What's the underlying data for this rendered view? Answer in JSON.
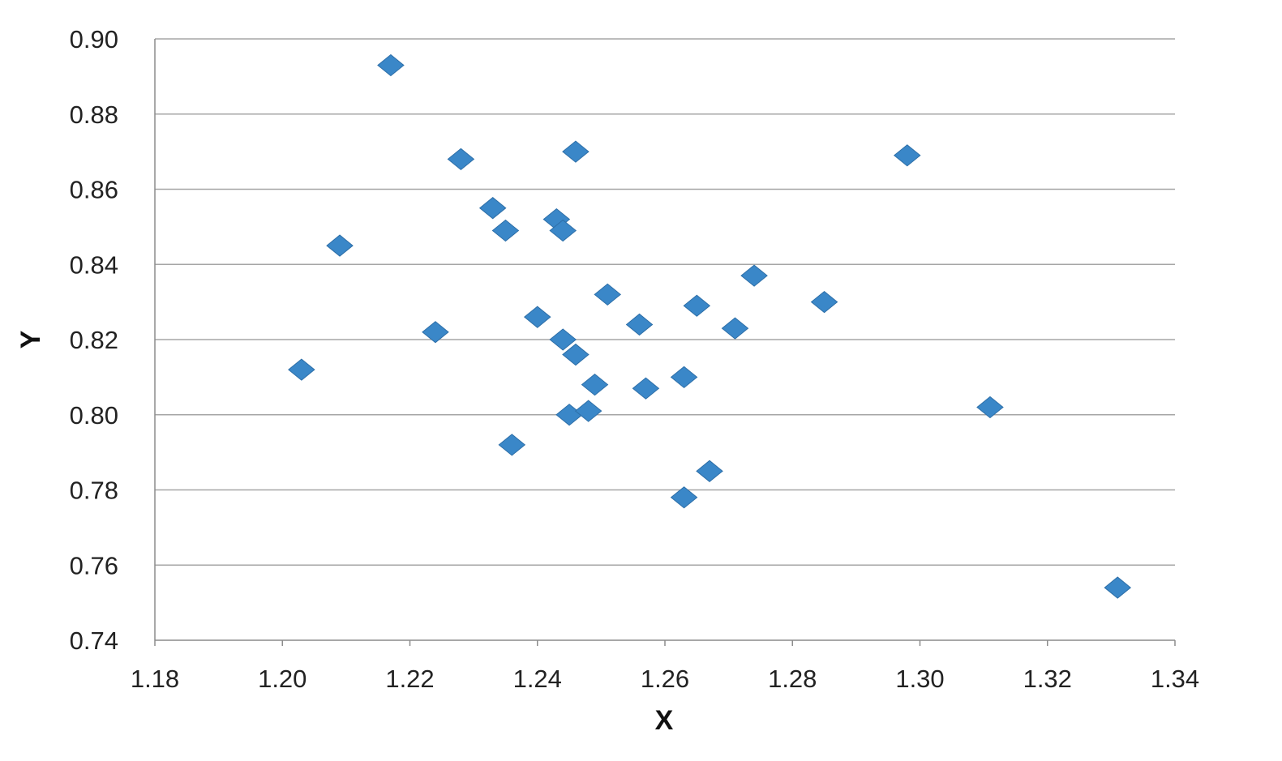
{
  "chart_data": {
    "type": "scatter",
    "xlabel": "X",
    "ylabel": "Y",
    "xlim": [
      1.18,
      1.34
    ],
    "ylim": [
      0.74,
      0.9
    ],
    "x_ticks": [
      "1.18",
      "1.20",
      "1.22",
      "1.24",
      "1.26",
      "1.28",
      "1.30",
      "1.32",
      "1.34"
    ],
    "y_ticks": [
      "0.74",
      "0.76",
      "0.78",
      "0.80",
      "0.82",
      "0.84",
      "0.86",
      "0.88",
      "0.90"
    ],
    "grid": "horizontal",
    "legend": "none",
    "marker": "diamond",
    "colors": {
      "marker": "#3a87c8",
      "grid": "#a6a6a6"
    },
    "points": [
      {
        "x": 1.217,
        "y": 0.893
      },
      {
        "x": 1.203,
        "y": 0.812
      },
      {
        "x": 1.209,
        "y": 0.845
      },
      {
        "x": 1.224,
        "y": 0.822
      },
      {
        "x": 1.228,
        "y": 0.868
      },
      {
        "x": 1.233,
        "y": 0.855
      },
      {
        "x": 1.235,
        "y": 0.849
      },
      {
        "x": 1.236,
        "y": 0.792
      },
      {
        "x": 1.24,
        "y": 0.826
      },
      {
        "x": 1.243,
        "y": 0.852
      },
      {
        "x": 1.244,
        "y": 0.849
      },
      {
        "x": 1.244,
        "y": 0.82
      },
      {
        "x": 1.245,
        "y": 0.8
      },
      {
        "x": 1.246,
        "y": 0.87
      },
      {
        "x": 1.246,
        "y": 0.816
      },
      {
        "x": 1.248,
        "y": 0.801
      },
      {
        "x": 1.249,
        "y": 0.808
      },
      {
        "x": 1.251,
        "y": 0.832
      },
      {
        "x": 1.256,
        "y": 0.824
      },
      {
        "x": 1.257,
        "y": 0.807
      },
      {
        "x": 1.263,
        "y": 0.81
      },
      {
        "x": 1.263,
        "y": 0.778
      },
      {
        "x": 1.265,
        "y": 0.829
      },
      {
        "x": 1.267,
        "y": 0.785
      },
      {
        "x": 1.271,
        "y": 0.823
      },
      {
        "x": 1.274,
        "y": 0.837
      },
      {
        "x": 1.285,
        "y": 0.83
      },
      {
        "x": 1.298,
        "y": 0.869
      },
      {
        "x": 1.311,
        "y": 0.802
      },
      {
        "x": 1.331,
        "y": 0.754
      }
    ]
  }
}
